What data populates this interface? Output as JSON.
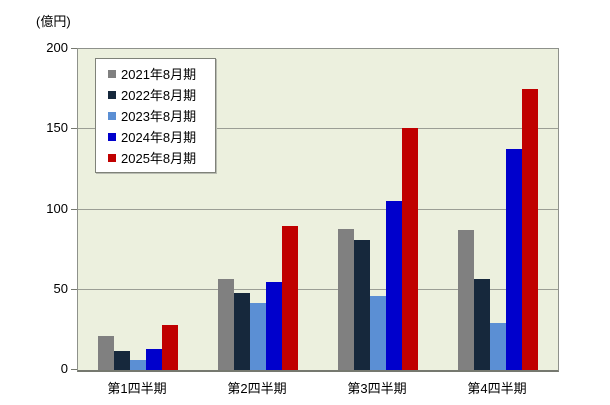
{
  "chart_data": {
    "type": "bar",
    "title": "",
    "ylabel": "(億円)",
    "xlabel": "",
    "ylim": [
      0,
      200
    ],
    "yticks": [
      0,
      50,
      100,
      150,
      200
    ],
    "grid": true,
    "legend_position": "upper-left-inside",
    "plot_bg_color": "#ECF0DE",
    "categories": [
      "第1四半期",
      "第2四半期",
      "第3四半期",
      "第4四半期"
    ],
    "series": [
      {
        "name": "2021年8月期",
        "color": "#808080",
        "values": [
          21,
          57,
          88,
          87
        ]
      },
      {
        "name": "2022年8月期",
        "color": "#16283C",
        "values": [
          12,
          48,
          81,
          57
        ]
      },
      {
        "name": "2023年8月期",
        "color": "#5B8FD4",
        "values": [
          6,
          42,
          46,
          29
        ]
      },
      {
        "name": "2024年8月期",
        "color": "#0000CC",
        "values": [
          13,
          55,
          105,
          138
        ]
      },
      {
        "name": "2025年8月期",
        "color": "#C00000",
        "values": [
          28,
          90,
          151,
          175
        ]
      }
    ]
  }
}
